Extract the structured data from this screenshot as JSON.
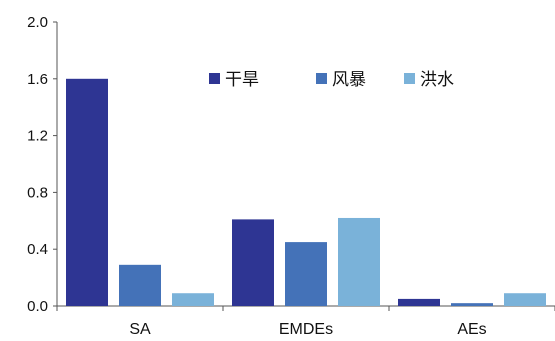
{
  "chart_data": {
    "type": "bar",
    "title": "",
    "xlabel": "",
    "ylabel": "",
    "categories": [
      "SA",
      "EMDEs",
      "AEs"
    ],
    "series": [
      {
        "name": "干旱",
        "color": "#2E3593",
        "values": [
          1.6,
          0.61,
          0.05
        ]
      },
      {
        "name": "风暴",
        "color": "#4472B8",
        "values": [
          0.29,
          0.45,
          0.02
        ]
      },
      {
        "name": "洪水",
        "color": "#7AB2D9",
        "values": [
          0.09,
          0.62,
          0.09
        ]
      }
    ],
    "ylim": [
      0,
      2.0
    ],
    "yticks": [
      "0.0",
      "0.4",
      "0.8",
      "1.2",
      "1.6",
      "2.0"
    ],
    "grid": false,
    "legend_position": "top-center"
  }
}
